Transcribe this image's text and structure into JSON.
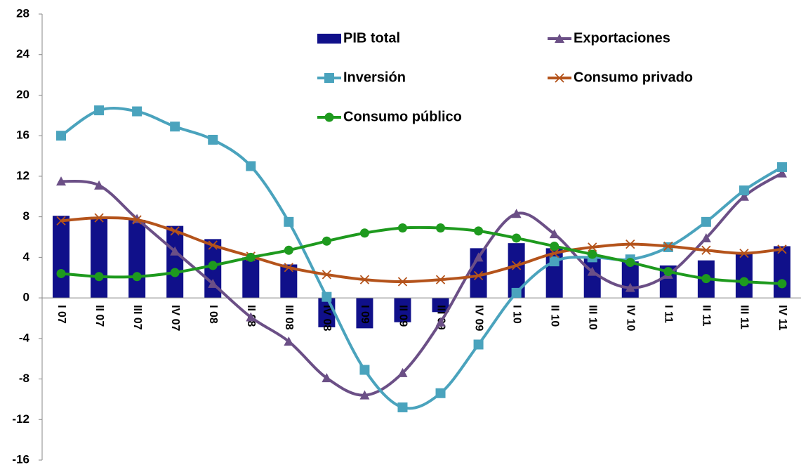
{
  "chart_data": {
    "type": "combo",
    "categories": [
      "I 07",
      "II 07",
      "III 07",
      "IV 07",
      "I 08",
      "II 08",
      "III 08",
      "IV 08",
      "I 09",
      "II 09",
      "III 09",
      "IV 09",
      "I 10",
      "II 10",
      "III 10",
      "IV 10",
      "I 11",
      "II 11",
      "III 11",
      "IV 11"
    ],
    "series": [
      {
        "name": "PIB total",
        "type": "bar",
        "color": "#10108a",
        "values": [
          8.1,
          8.0,
          7.7,
          7.1,
          5.8,
          4.0,
          3.3,
          -2.9,
          -3.0,
          -2.4,
          -1.4,
          4.9,
          5.4,
          4.9,
          4.0,
          3.6,
          3.2,
          3.7,
          4.5,
          5.1
        ]
      },
      {
        "name": "Exportaciones",
        "type": "line",
        "marker": "triangle",
        "color": "#6b4f86",
        "values": [
          11.5,
          11.1,
          7.8,
          4.6,
          1.4,
          -1.9,
          -4.3,
          -7.9,
          -9.6,
          -7.4,
          -2.4,
          4.0,
          8.3,
          6.3,
          2.6,
          1.0,
          2.3,
          5.9,
          10.0,
          12.3
        ]
      },
      {
        "name": "Inversión",
        "type": "line",
        "marker": "square",
        "color": "#4aa3bd",
        "values": [
          16.0,
          18.5,
          18.4,
          16.9,
          15.6,
          13.0,
          7.5,
          0.1,
          -7.1,
          -10.8,
          -9.4,
          -4.6,
          0.5,
          3.6,
          4.0,
          3.8,
          5.0,
          7.5,
          10.6,
          12.9
        ]
      },
      {
        "name": "Consumo privado",
        "type": "line",
        "marker": "x",
        "color": "#b4531b",
        "values": [
          7.6,
          7.9,
          7.7,
          6.6,
          5.2,
          4.1,
          3.0,
          2.3,
          1.8,
          1.6,
          1.8,
          2.2,
          3.2,
          4.4,
          5.0,
          5.3,
          5.1,
          4.7,
          4.4,
          4.8
        ]
      },
      {
        "name": "Consumo público",
        "type": "line",
        "marker": "circle",
        "color": "#1e9a1e",
        "values": [
          2.4,
          2.1,
          2.1,
          2.5,
          3.2,
          4.0,
          4.7,
          5.6,
          6.4,
          6.9,
          6.9,
          6.6,
          5.9,
          5.1,
          4.3,
          3.5,
          2.6,
          1.9,
          1.6,
          1.4
        ]
      }
    ],
    "ylim": [
      -16,
      28
    ],
    "yticks": [
      -16,
      -12,
      -8,
      -4,
      0,
      4,
      8,
      12,
      16,
      20,
      24,
      28
    ],
    "grid": false
  }
}
